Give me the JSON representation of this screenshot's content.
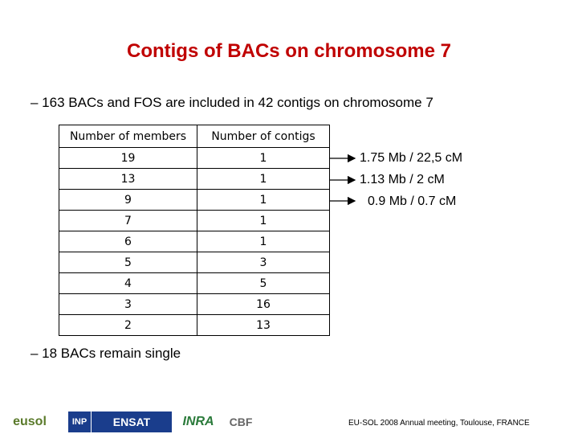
{
  "title": "Contigs of BACs on chromosome 7",
  "bullets": [
    "– 163 BACs and FOS are included  in  42 contigs on chromosome 7",
    "– 18 BACs remain single"
  ],
  "table": {
    "header": [
      "Number of members",
      "Number of contigs"
    ],
    "rows": [
      [
        19,
        1
      ],
      [
        13,
        1
      ],
      [
        9,
        1
      ],
      [
        7,
        1
      ],
      [
        6,
        1
      ],
      [
        5,
        3
      ],
      [
        4,
        5
      ],
      [
        3,
        16
      ],
      [
        2,
        13
      ]
    ]
  },
  "annotations": [
    "1.75 Mb / 22,5 cM",
    "1.13 Mb / 2 cM",
    "0.9 Mb / 0.7 cM"
  ],
  "logos": [
    "eusol",
    "INP",
    "ENSAT",
    "INRA",
    "CBF"
  ],
  "footer": "EU-SOL 2008 Annual meeting, Toulouse, FRANCE"
}
